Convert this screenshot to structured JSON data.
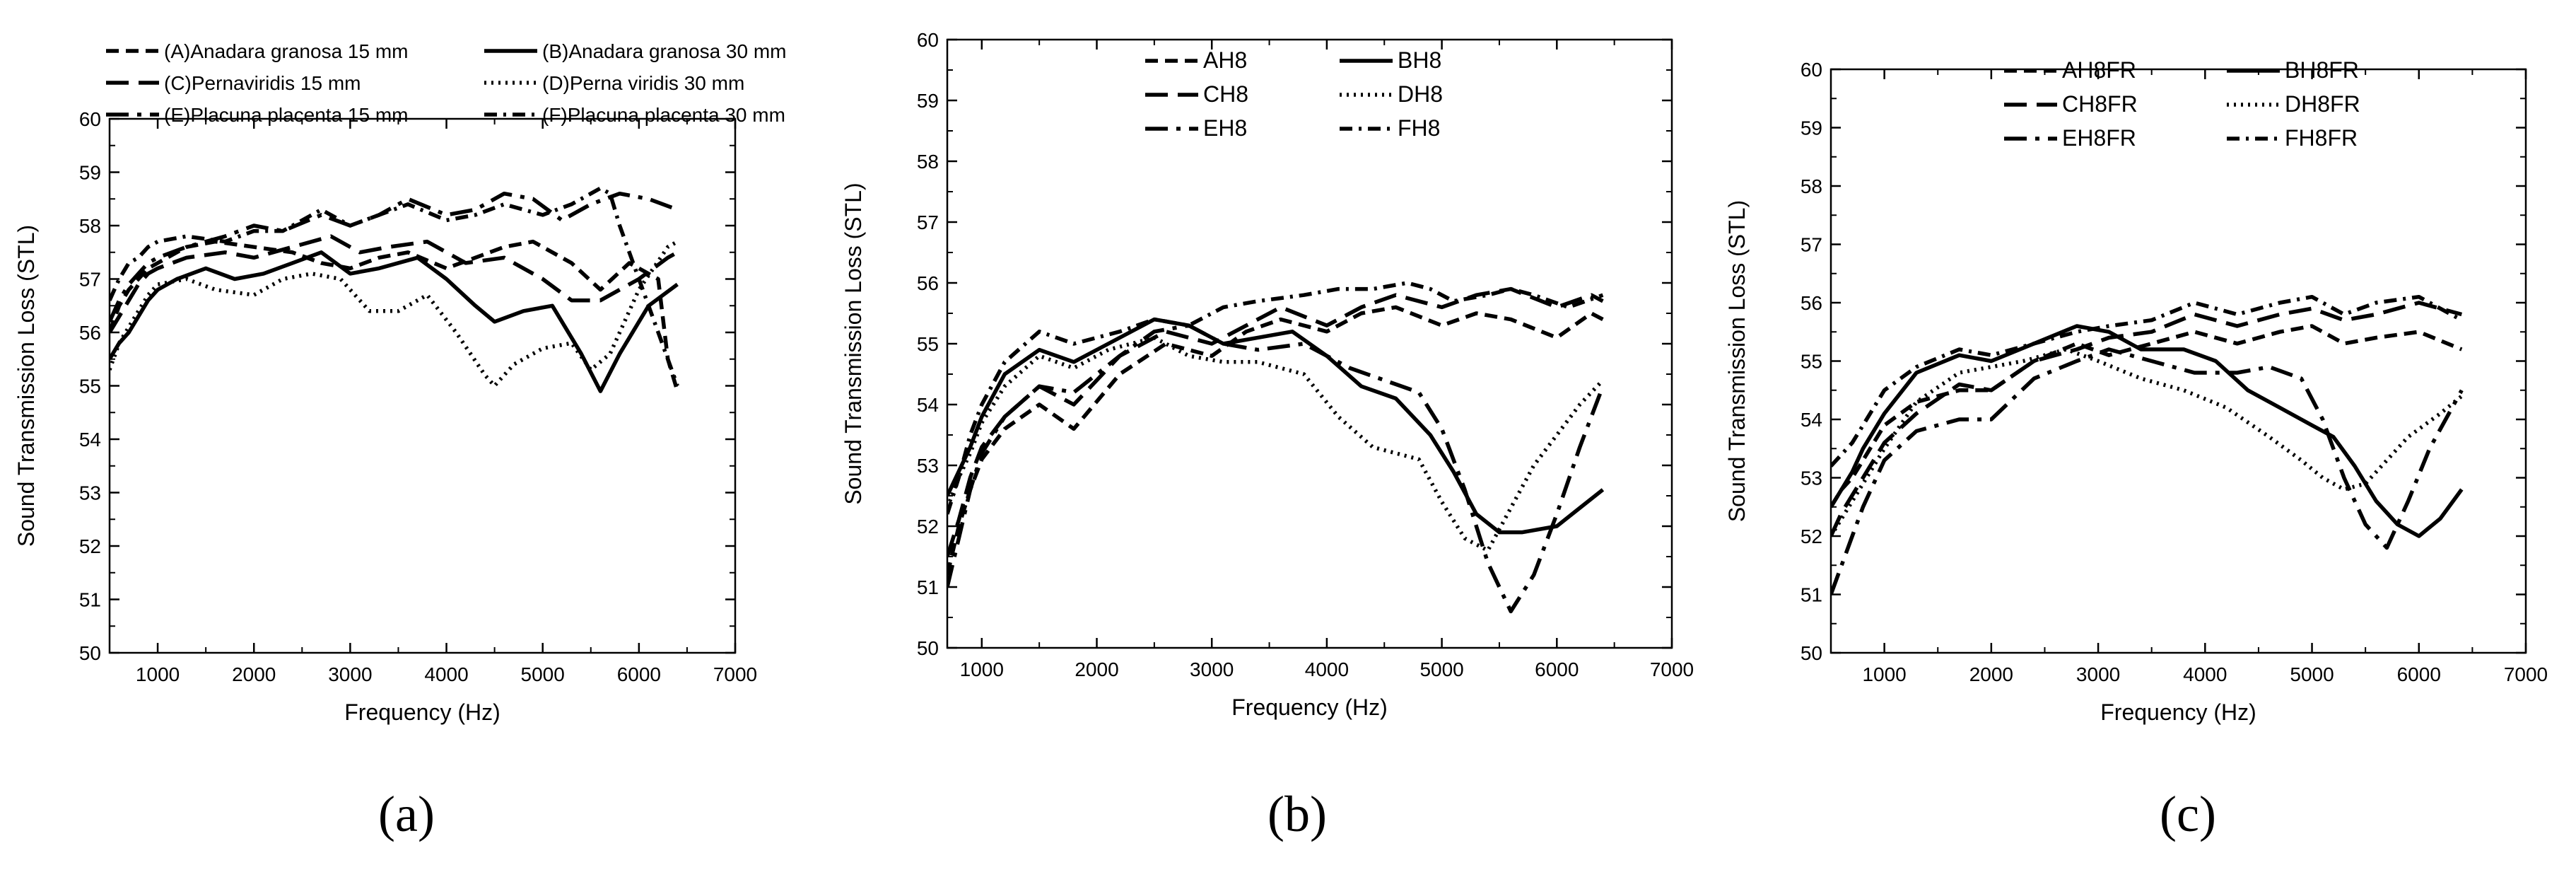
{
  "chart_data": [
    {
      "type": "line",
      "caption": "(a)",
      "xlabel": "Frequency (Hz)",
      "ylabel": "Sound Transmission Loss (STL)",
      "xlim": [
        500,
        7000
      ],
      "ylim": [
        50,
        60
      ],
      "x_ticks": [
        1000,
        2000,
        3000,
        4000,
        5000,
        6000,
        7000
      ],
      "y_ticks": [
        50,
        51,
        52,
        53,
        54,
        55,
        56,
        57,
        58,
        59,
        60
      ],
      "legend_position": "top",
      "series": [
        {
          "name": "(A)Anadara granosa 15 mm",
          "style": "dash",
          "x": [
            500,
            600,
            700,
            800,
            900,
            1000,
            1300,
            1600,
            2000,
            2400,
            2700,
            3000,
            3300,
            3600,
            4000,
            4300,
            4600,
            4900,
            5300,
            5600,
            5900,
            6200,
            6300,
            6400
          ],
          "y": [
            56,
            56.5,
            56.8,
            57,
            57.2,
            57.3,
            57.6,
            57.7,
            57.6,
            57.5,
            57.3,
            57.2,
            57.4,
            57.5,
            57.2,
            57.4,
            57.6,
            57.7,
            57.3,
            56.8,
            57.3,
            57.0,
            55.5,
            54.9
          ]
        },
        {
          "name": "(B)Anadara granosa 30 mm",
          "style": "solid",
          "x": [
            500,
            600,
            700,
            800,
            900,
            1000,
            1200,
            1500,
            1800,
            2100,
            2400,
            2700,
            3000,
            3300,
            3700,
            4000,
            4300,
            4500,
            4800,
            5100,
            5400,
            5600,
            5800,
            6100,
            6400
          ],
          "y": [
            55.5,
            55.8,
            56,
            56.3,
            56.6,
            56.8,
            57.0,
            57.2,
            57.0,
            57.1,
            57.3,
            57.5,
            57.1,
            57.2,
            57.4,
            57.0,
            56.5,
            56.2,
            56.4,
            56.5,
            55.6,
            54.9,
            55.6,
            56.5,
            56.9
          ]
        },
        {
          "name": "(C)Pernaviridis 15 mm",
          "style": "longdash",
          "x": [
            500,
            600,
            700,
            800,
            900,
            1000,
            1300,
            1700,
            2000,
            2400,
            2800,
            3100,
            3400,
            3800,
            4200,
            4600,
            5000,
            5300,
            5600,
            6000,
            6300,
            6400
          ],
          "y": [
            56,
            56.3,
            56.6,
            56.9,
            57.1,
            57.2,
            57.4,
            57.5,
            57.4,
            57.6,
            57.8,
            57.5,
            57.6,
            57.7,
            57.3,
            57.4,
            57.0,
            56.6,
            56.6,
            57.0,
            57.4,
            57.5
          ]
        },
        {
          "name": "(D)Perna viridis 30 mm",
          "style": "dot",
          "x": [
            500,
            600,
            700,
            800,
            900,
            1000,
            1300,
            1600,
            2000,
            2300,
            2600,
            2900,
            3200,
            3500,
            3800,
            4100,
            4400,
            4500,
            4700,
            5000,
            5300,
            5500,
            5700,
            6000,
            6300,
            6400
          ],
          "y": [
            55.3,
            55.8,
            56.1,
            56.4,
            56.7,
            56.9,
            57.0,
            56.8,
            56.7,
            57.0,
            57.1,
            57.0,
            56.4,
            56.4,
            56.7,
            56.0,
            55.2,
            55.0,
            55.4,
            55.7,
            55.8,
            55.3,
            55.6,
            56.8,
            57.6,
            57.7
          ]
        },
        {
          "name": "(E)Placuna placenta 15 mm",
          "style": "longdashdot",
          "x": [
            500,
            600,
            700,
            800,
            900,
            1000,
            1300,
            1700,
            2000,
            2300,
            2700,
            3000,
            3300,
            3600,
            4000,
            4300,
            4600,
            4900,
            5200,
            5500,
            5800,
            6100,
            6400
          ],
          "y": [
            56.2,
            56.6,
            56.9,
            57.1,
            57.3,
            57.4,
            57.6,
            57.8,
            58.0,
            57.9,
            58.2,
            58.0,
            58.2,
            58.5,
            58.2,
            58.3,
            58.6,
            58.5,
            58.1,
            58.4,
            58.6,
            58.5,
            58.3
          ]
        },
        {
          "name": "(F)Placuna placenta 30 mm",
          "style": "dashdot",
          "x": [
            500,
            600,
            700,
            800,
            900,
            1000,
            1300,
            1700,
            2000,
            2300,
            2700,
            3000,
            3300,
            3600,
            4000,
            4300,
            4600,
            5000,
            5300,
            5500,
            5600,
            5700,
            5800,
            6000,
            6200,
            6400
          ],
          "y": [
            56.6,
            57,
            57.3,
            57.4,
            57.6,
            57.7,
            57.8,
            57.7,
            57.9,
            57.9,
            58.3,
            58.0,
            58.2,
            58.4,
            58.1,
            58.2,
            58.4,
            58.2,
            58.4,
            58.6,
            58.7,
            58.6,
            58.0,
            57.0,
            56.0,
            55.0
          ]
        }
      ]
    },
    {
      "type": "line",
      "caption": "(b)",
      "xlabel": "Frequency (Hz)",
      "ylabel": "Sound Transmission Loss (STL)",
      "xlim": [
        700,
        7000
      ],
      "ylim": [
        50,
        60
      ],
      "x_ticks": [
        1000,
        2000,
        3000,
        4000,
        5000,
        6000,
        7000
      ],
      "y_ticks": [
        50,
        51,
        52,
        53,
        54,
        55,
        56,
        57,
        58,
        59,
        60
      ],
      "legend_position": "top",
      "series": [
        {
          "name": "AH8",
          "style": "dash",
          "x": [
            700,
            800,
            900,
            1000,
            1200,
            1500,
            1800,
            2200,
            2600,
            3000,
            3300,
            3600,
            4000,
            4300,
            4600,
            5000,
            5300,
            5600,
            6000,
            6300,
            6400
          ],
          "y": [
            51.2,
            52,
            52.6,
            53.1,
            53.6,
            54.0,
            53.6,
            54.5,
            55.0,
            54.8,
            55.2,
            55.4,
            55.2,
            55.5,
            55.6,
            55.3,
            55.5,
            55.4,
            55.1,
            55.5,
            55.4
          ]
        },
        {
          "name": "BH8",
          "style": "solid",
          "x": [
            700,
            800,
            900,
            1000,
            1200,
            1500,
            1800,
            2100,
            2500,
            2800,
            3100,
            3400,
            3700,
            4000,
            4300,
            4600,
            4900,
            5100,
            5300,
            5500,
            5700,
            6000,
            6200,
            6400
          ],
          "y": [
            52.5,
            52.9,
            53.3,
            53.8,
            54.5,
            54.9,
            54.7,
            55.0,
            55.4,
            55.3,
            55.0,
            55.1,
            55.2,
            54.8,
            54.3,
            54.1,
            53.5,
            52.9,
            52.2,
            51.9,
            51.9,
            52.0,
            52.3,
            52.6
          ]
        },
        {
          "name": "CH8",
          "style": "longdash",
          "x": [
            700,
            800,
            900,
            1000,
            1200,
            1500,
            1800,
            2200,
            2600,
            3000,
            3300,
            3600,
            4000,
            4300,
            4600,
            5000,
            5300,
            5600,
            6000,
            6300,
            6400
          ],
          "y": [
            51.5,
            52.1,
            52.8,
            53.3,
            53.8,
            54.3,
            54.0,
            54.8,
            55.2,
            55.0,
            55.3,
            55.6,
            55.3,
            55.6,
            55.8,
            55.6,
            55.8,
            55.9,
            55.6,
            55.8,
            55.7
          ]
        },
        {
          "name": "DH8",
          "style": "dot",
          "x": [
            700,
            800,
            900,
            1000,
            1200,
            1500,
            1800,
            2100,
            2500,
            2800,
            3100,
            3400,
            3800,
            4100,
            4400,
            4800,
            5000,
            5200,
            5400,
            5600,
            5800,
            6000,
            6200,
            6400
          ],
          "y": [
            52.3,
            52.8,
            53.2,
            53.7,
            54.3,
            54.8,
            54.6,
            54.9,
            55.1,
            54.8,
            54.7,
            54.7,
            54.5,
            53.8,
            53.3,
            53.1,
            52.4,
            51.8,
            51.6,
            52.3,
            53.0,
            53.5,
            54.0,
            54.4
          ]
        },
        {
          "name": "EH8",
          "style": "longdashdot",
          "x": [
            700,
            800,
            900,
            1000,
            1200,
            1500,
            1800,
            2200,
            2500,
            2800,
            3100,
            3400,
            3800,
            4200,
            4500,
            4800,
            5000,
            5200,
            5400,
            5600,
            5800,
            6000,
            6200,
            6400
          ],
          "y": [
            51.0,
            51.8,
            52.6,
            53.2,
            53.8,
            54.3,
            54.2,
            54.8,
            55.2,
            55.3,
            55.0,
            54.9,
            55.0,
            54.6,
            54.4,
            54.2,
            53.6,
            52.6,
            51.4,
            50.6,
            51.2,
            52.2,
            53.3,
            54.3
          ]
        },
        {
          "name": "FH8",
          "style": "dashdot",
          "x": [
            700,
            800,
            900,
            1000,
            1200,
            1500,
            1800,
            2200,
            2500,
            2800,
            3100,
            3400,
            3800,
            4100,
            4400,
            4700,
            4900,
            5100,
            5400,
            5600,
            5800,
            6100,
            6400
          ],
          "y": [
            52.2,
            52.8,
            53.5,
            54.0,
            54.7,
            55.2,
            55.0,
            55.2,
            55.4,
            55.3,
            55.6,
            55.7,
            55.8,
            55.9,
            55.9,
            56.0,
            55.9,
            55.7,
            55.8,
            55.9,
            55.8,
            55.6,
            55.8
          ]
        }
      ]
    },
    {
      "type": "line",
      "caption": "(c)",
      "xlabel": "Frequency (Hz)",
      "ylabel": "Sound Transmission Loss (STL)",
      "xlim": [
        500,
        7000
      ],
      "ylim": [
        50,
        60
      ],
      "x_ticks": [
        1000,
        2000,
        3000,
        4000,
        5000,
        6000,
        7000
      ],
      "y_ticks": [
        50,
        51,
        52,
        53,
        54,
        55,
        56,
        57,
        58,
        59,
        60
      ],
      "legend_position": "top",
      "series": [
        {
          "name": "AH8FR",
          "style": "dash",
          "x": [
            500,
            600,
            700,
            800,
            900,
            1000,
            1300,
            1700,
            2000,
            2400,
            2800,
            3100,
            3500,
            3900,
            4300,
            4700,
            5000,
            5300,
            5600,
            6000,
            6400
          ],
          "y": [
            52.5,
            52.8,
            53.0,
            53.3,
            53.6,
            53.9,
            54.3,
            54.5,
            54.5,
            55.0,
            55.3,
            55.1,
            55.3,
            55.5,
            55.3,
            55.5,
            55.6,
            55.3,
            55.4,
            55.5,
            55.2
          ]
        },
        {
          "name": "BH8FR",
          "style": "solid",
          "x": [
            500,
            600,
            700,
            800,
            900,
            1000,
            1300,
            1700,
            2000,
            2400,
            2800,
            3100,
            3400,
            3800,
            4100,
            4400,
            4700,
            5000,
            5200,
            5400,
            5600,
            5800,
            6000,
            6200,
            6400
          ],
          "y": [
            52.5,
            52.8,
            53.1,
            53.5,
            53.8,
            54.1,
            54.8,
            55.1,
            55.0,
            55.3,
            55.6,
            55.5,
            55.2,
            55.2,
            55.0,
            54.5,
            54.2,
            53.9,
            53.7,
            53.2,
            52.6,
            52.2,
            52.0,
            52.3,
            52.8
          ]
        },
        {
          "name": "CH8FR",
          "style": "longdash",
          "x": [
            500,
            600,
            700,
            800,
            900,
            1000,
            1300,
            1700,
            2000,
            2400,
            2800,
            3100,
            3500,
            3900,
            4300,
            4700,
            5000,
            5300,
            5600,
            6000,
            6400
          ],
          "y": [
            52.0,
            52.4,
            52.7,
            53.0,
            53.3,
            53.6,
            54.1,
            54.6,
            54.5,
            55.0,
            55.2,
            55.4,
            55.5,
            55.8,
            55.6,
            55.8,
            55.9,
            55.7,
            55.8,
            56.0,
            55.8
          ]
        },
        {
          "name": "DH8FR",
          "style": "dot",
          "x": [
            500,
            600,
            700,
            800,
            900,
            1000,
            1300,
            1700,
            2000,
            2300,
            2700,
            3000,
            3400,
            3800,
            4200,
            4600,
            4900,
            5100,
            5300,
            5500,
            5700,
            5900,
            6200,
            6400
          ],
          "y": [
            52.0,
            52.3,
            52.6,
            52.9,
            53.2,
            53.5,
            54.3,
            54.8,
            54.9,
            55.0,
            55.2,
            55.0,
            54.7,
            54.5,
            54.2,
            53.7,
            53.3,
            53.0,
            52.8,
            52.9,
            53.3,
            53.7,
            54.1,
            54.4
          ]
        },
        {
          "name": "EH8FR",
          "style": "longdashdot",
          "x": [
            500,
            600,
            700,
            800,
            900,
            1000,
            1300,
            1700,
            2000,
            2400,
            2800,
            3100,
            3500,
            3900,
            4300,
            4600,
            4900,
            5100,
            5300,
            5500,
            5700,
            5900,
            6100,
            6400
          ],
          "y": [
            51.0,
            51.5,
            52.0,
            52.5,
            52.9,
            53.3,
            53.8,
            54.0,
            54.0,
            54.7,
            55.0,
            55.2,
            55.0,
            54.8,
            54.8,
            54.9,
            54.7,
            54.0,
            53.0,
            52.2,
            51.8,
            52.6,
            53.5,
            54.5
          ]
        },
        {
          "name": "FH8FR",
          "style": "dashdot",
          "x": [
            500,
            600,
            700,
            800,
            900,
            1000,
            1300,
            1700,
            2000,
            2400,
            2800,
            3100,
            3500,
            3900,
            4300,
            4700,
            5000,
            5300,
            5600,
            6000,
            6400
          ],
          "y": [
            53.2,
            53.4,
            53.6,
            53.9,
            54.2,
            54.5,
            54.9,
            55.2,
            55.1,
            55.3,
            55.5,
            55.6,
            55.7,
            56.0,
            55.8,
            56.0,
            56.1,
            55.8,
            56.0,
            56.1,
            55.7
          ]
        }
      ]
    }
  ]
}
